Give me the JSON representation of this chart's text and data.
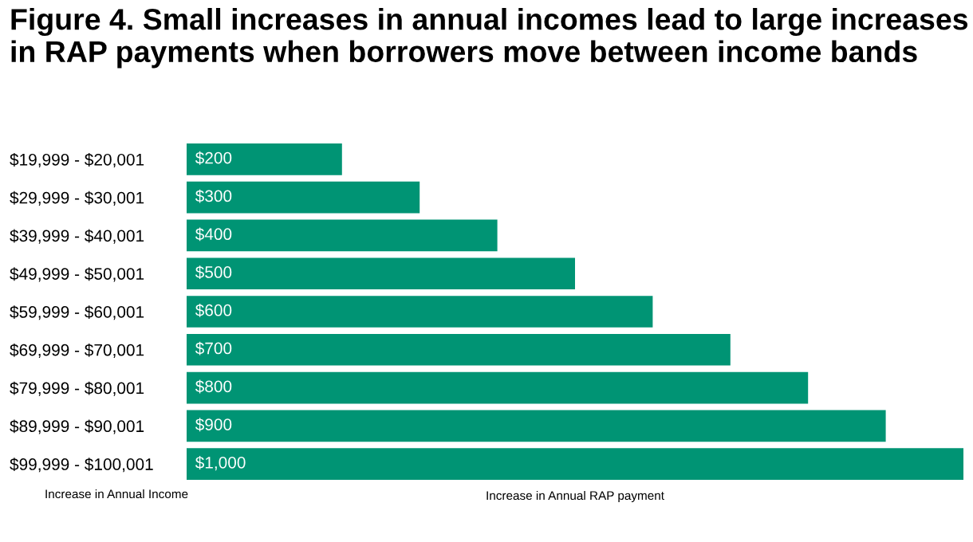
{
  "chart_data": {
    "type": "bar",
    "orientation": "horizontal",
    "title": "Figure 4. Small increases in annual incomes lead to large increases in RAP payments when borrowers move between income bands",
    "ylabel": "Increase in Annual Income",
    "xlabel": "Increase in Annual RAP payment",
    "categories": [
      "$19,999 - $20,001",
      "$29,999 - $30,001",
      "$39,999 - $40,001",
      "$49,999 - $50,001",
      "$59,999 - $60,001",
      "$69,999 - $70,001",
      "$79,999 - $80,001",
      "$89,999 - $90,001",
      "$99,999 - $100,001"
    ],
    "values": [
      200,
      300,
      400,
      500,
      600,
      700,
      800,
      900,
      1000
    ],
    "value_labels": [
      "$200",
      "$300",
      "$400",
      "$500",
      "$600",
      "$700",
      "$800",
      "$900",
      "$1,000"
    ],
    "color": "#009474",
    "grid": false,
    "legend": false
  }
}
